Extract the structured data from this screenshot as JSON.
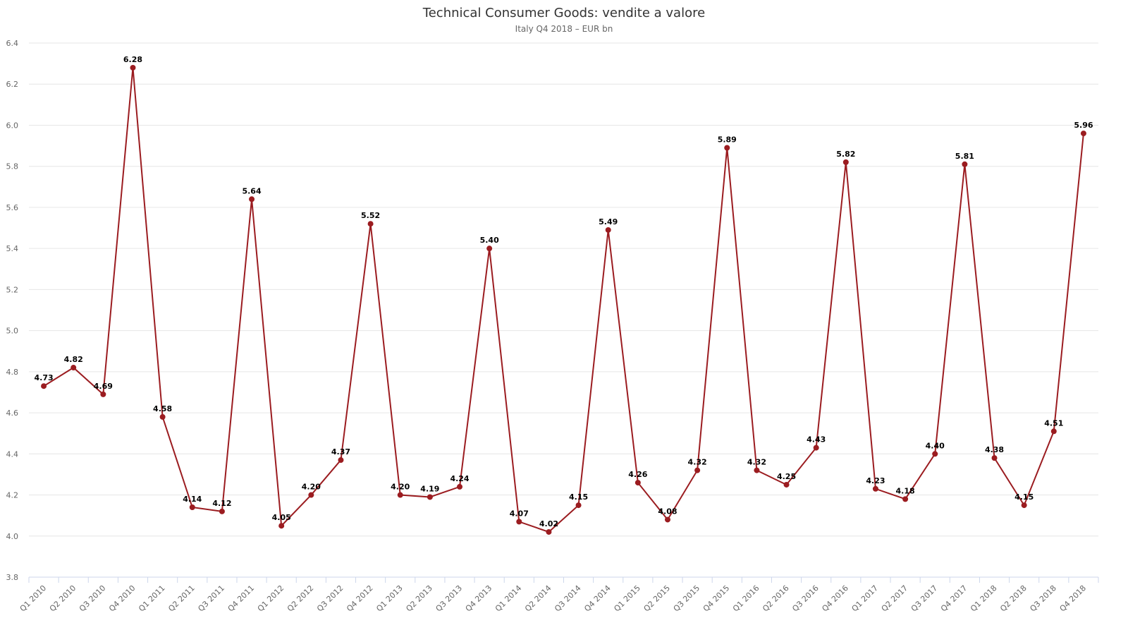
{
  "title": "Technical Consumer Goods: vendite a valore",
  "subtitle": "Italy Q4 2018 – EUR bn",
  "colors": {
    "series": "#9b1c20",
    "grid": "#e6e6e6",
    "axis": "#ccd6eb"
  },
  "chart_data": {
    "type": "line",
    "title": "Technical Consumer Goods: vendite a valore",
    "subtitle": "Italy Q4 2018 – EUR bn",
    "xlabel": "",
    "ylabel": "",
    "ylim": [
      3.8,
      6.4
    ],
    "yticks": [
      "3.8",
      "4.0",
      "4.2",
      "4.4",
      "4.6",
      "4.8",
      "5.0",
      "5.2",
      "5.4",
      "5.6",
      "5.8",
      "6.0",
      "6.2",
      "6.4"
    ],
    "grid": true,
    "legend": "none",
    "categories": [
      "Q1 2010",
      "Q2 2010",
      "Q3 2010",
      "Q4 2010",
      "Q1 2011",
      "Q2 2011",
      "Q3 2011",
      "Q4 2011",
      "Q1 2012",
      "Q2 2012",
      "Q3 2012",
      "Q4 2012",
      "Q1 2013",
      "Q2 2013",
      "Q3 2013",
      "Q4 2013",
      "Q1 2014",
      "Q2 2014",
      "Q3 2014",
      "Q4 2014",
      "Q1 2015",
      "Q2 2015",
      "Q3 2015",
      "Q4 2015",
      "Q1 2016",
      "Q2 2016",
      "Q3 2016",
      "Q4 2016",
      "Q1 2017",
      "Q2 2017",
      "Q3 2017",
      "Q4 2017",
      "Q1 2018",
      "Q2 2018",
      "Q3 2018",
      "Q4 2018"
    ],
    "series": [
      {
        "values": [
          4.73,
          4.82,
          4.69,
          6.28,
          4.58,
          4.14,
          4.12,
          5.64,
          4.05,
          4.2,
          4.37,
          5.52,
          4.2,
          4.19,
          4.24,
          5.4,
          4.07,
          4.02,
          4.15,
          5.49,
          4.26,
          4.08,
          4.32,
          5.89,
          4.32,
          4.25,
          4.43,
          5.82,
          4.23,
          4.18,
          4.4,
          5.81,
          4.38,
          4.15,
          4.51,
          5.96
        ],
        "labels": [
          "4.73",
          "4.82",
          "4.69",
          "6.28",
          "4.58",
          "4.14",
          "4.12",
          "5.64",
          "4.05",
          "4.20",
          "4.37",
          "5.52",
          "4.20",
          "4.19",
          "4.24",
          "5.40",
          "4.07",
          "4.02",
          "4.15",
          "5.49",
          "4.26",
          "4.08",
          "4.32",
          "5.89",
          "4.32",
          "4.25",
          "4.43",
          "5.82",
          "4.23",
          "4.18",
          "4.40",
          "5.81",
          "4.38",
          "4.15",
          "4.51",
          "5.96"
        ]
      }
    ]
  }
}
